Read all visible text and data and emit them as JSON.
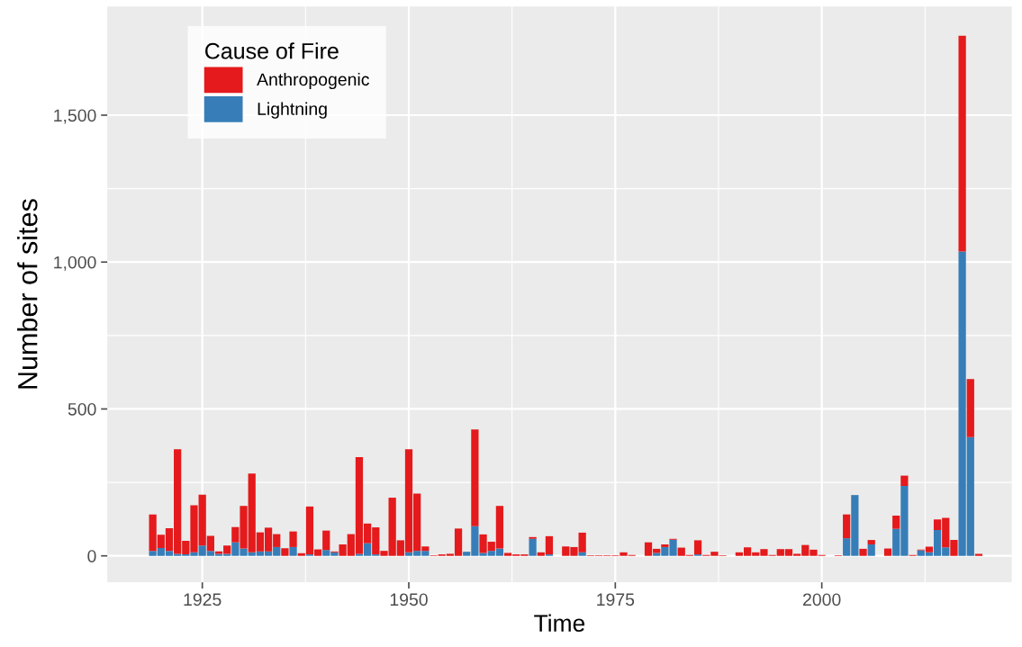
{
  "chart_data": {
    "type": "bar",
    "stacked": true,
    "xlabel": "Time",
    "ylabel": "Number of sites",
    "legend_title": "Cause of Fire",
    "legend": "top left",
    "grid": true,
    "x": [
      1919,
      1920,
      1921,
      1922,
      1923,
      1924,
      1925,
      1926,
      1927,
      1928,
      1929,
      1930,
      1931,
      1932,
      1933,
      1934,
      1935,
      1936,
      1937,
      1938,
      1939,
      1940,
      1941,
      1942,
      1943,
      1944,
      1945,
      1946,
      1947,
      1948,
      1949,
      1950,
      1951,
      1952,
      1953,
      1954,
      1955,
      1956,
      1957,
      1958,
      1959,
      1960,
      1961,
      1962,
      1963,
      1964,
      1965,
      1966,
      1967,
      1968,
      1969,
      1970,
      1971,
      1972,
      1973,
      1974,
      1975,
      1976,
      1977,
      1978,
      1979,
      1980,
      1981,
      1982,
      1983,
      1984,
      1985,
      1986,
      1987,
      1988,
      1989,
      1990,
      1991,
      1992,
      1993,
      1994,
      1995,
      1996,
      1997,
      1998,
      1999,
      2000,
      2001,
      2002,
      2003,
      2004,
      2005,
      2006,
      2007,
      2008,
      2009,
      2010,
      2011,
      2012,
      2013,
      2014,
      2015,
      2016,
      2017,
      2018,
      2019
    ],
    "series": [
      {
        "name": "Lightning",
        "color": "#377eb8",
        "values": [
          17,
          27,
          17,
          7,
          5,
          12,
          35,
          17,
          7,
          7,
          46,
          25,
          12,
          15,
          15,
          30,
          0,
          30,
          0,
          5,
          0,
          20,
          12,
          0,
          0,
          7,
          43,
          5,
          0,
          0,
          0,
          12,
          17,
          17,
          0,
          0,
          0,
          0,
          14,
          101,
          10,
          17,
          25,
          0,
          0,
          0,
          58,
          0,
          5,
          0,
          0,
          0,
          12,
          0,
          0,
          0,
          0,
          0,
          0,
          0,
          0,
          10,
          30,
          55,
          0,
          0,
          5,
          0,
          0,
          0,
          0,
          0,
          0,
          0,
          0,
          0,
          0,
          0,
          0,
          0,
          0,
          0,
          0,
          0,
          60,
          207,
          0,
          39,
          0,
          0,
          92,
          238,
          0,
          19,
          12,
          88,
          29,
          0,
          1036,
          404,
          0
        ]
      },
      {
        "name": "Anthropogenic",
        "color": "#e41a1c",
        "values": [
          124,
          45,
          77,
          356,
          46,
          160,
          173,
          51,
          8,
          28,
          52,
          145,
          268,
          65,
          81,
          44,
          26,
          53,
          9,
          163,
          22,
          66,
          3,
          39,
          74,
          329,
          67,
          92,
          17,
          198,
          53,
          351,
          195,
          15,
          2,
          5,
          7,
          93,
          0,
          329,
          63,
          31,
          145,
          10,
          5,
          5,
          6,
          12,
          62,
          0,
          32,
          30,
          67,
          2,
          2,
          2,
          2,
          12,
          3,
          0,
          46,
          14,
          9,
          3,
          28,
          3,
          48,
          3,
          14,
          2,
          0,
          12,
          29,
          12,
          23,
          3,
          23,
          23,
          7,
          37,
          21,
          3,
          0,
          2,
          81,
          0,
          24,
          15,
          0,
          25,
          45,
          35,
          3,
          2,
          19,
          36,
          100,
          54,
          734,
          198,
          7
        ]
      }
    ],
    "xlim": [
      1913.5,
      2023
    ],
    "xticks": [
      1925,
      1950,
      1975,
      2000
    ],
    "ylim": [
      -90,
      1870
    ],
    "yticks": [
      0,
      500,
      {
        "value": 1000,
        "label": "1,000"
      },
      {
        "value": 1500,
        "label": "1,500"
      }
    ]
  }
}
